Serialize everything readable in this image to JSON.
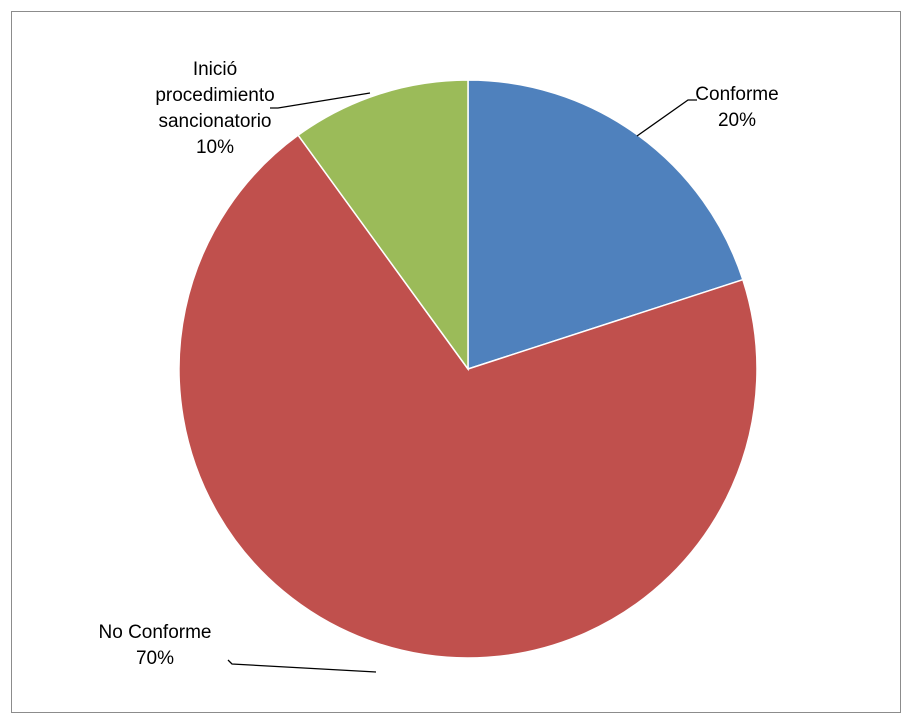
{
  "chart_data": {
    "type": "pie",
    "title": "",
    "start_angle_deg": 0,
    "direction": "clockwise",
    "legend": "none",
    "slices": [
      {
        "label_lines": [
          "Conforme"
        ],
        "value_label": "20%",
        "value": 20,
        "color": "#4F81BD"
      },
      {
        "label_lines": [
          "No Conforme"
        ],
        "value_label": "70%",
        "value": 70,
        "color": "#C0504D"
      },
      {
        "label_lines": [
          "Inició",
          "procedimiento",
          "sancionatorio"
        ],
        "value_label": "10%",
        "value": 10,
        "color": "#9BBB59"
      }
    ]
  }
}
